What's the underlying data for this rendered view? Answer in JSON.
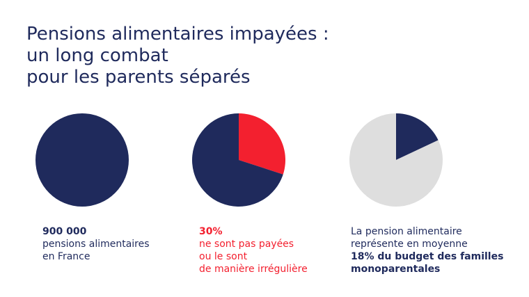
{
  "title_lines": [
    "Pensions alimentaires impayées :",
    "un long combat",
    "pour les parents séparés"
  ],
  "colors": {
    "title": "#1f2a5c",
    "navy": "#1f2a5c",
    "red": "#f3202f",
    "grey": "#dedede"
  },
  "chart_data": [
    {
      "type": "pie",
      "slices": [
        {
          "value": 100,
          "color": "#1f2a5c"
        }
      ],
      "caption": {
        "highlight": "900 000",
        "lines": [
          "pensions alimentaires",
          "en France"
        ]
      }
    },
    {
      "type": "pie",
      "slices": [
        {
          "value": 30,
          "color": "#f3202f"
        },
        {
          "value": 70,
          "color": "#1f2a5c"
        }
      ],
      "caption": {
        "highlight": "30%",
        "lines": [
          "ne sont pas payées",
          "ou le sont",
          "de manière irrégulière"
        ]
      }
    },
    {
      "type": "pie",
      "slices": [
        {
          "value": 18,
          "color": "#1f2a5c"
        },
        {
          "value": 82,
          "color": "#dedede"
        }
      ],
      "caption": {
        "lines": [
          "La pension alimentaire",
          "représente en moyenne"
        ],
        "bold_lines": [
          "18% du budget des familles",
          "monoparentales"
        ]
      }
    }
  ]
}
